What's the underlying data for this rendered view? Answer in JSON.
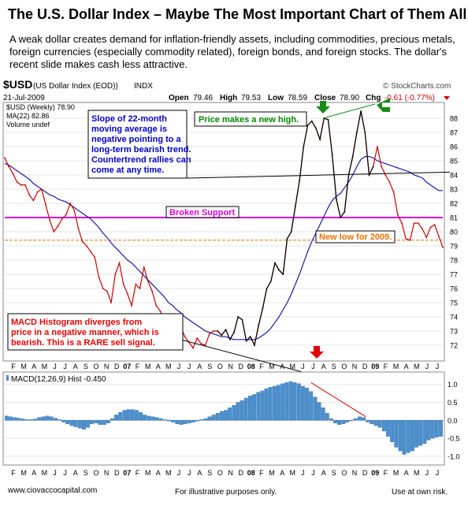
{
  "page": {
    "headline": "The U.S. Dollar Index – Maybe The Most Important Chart of Them All:",
    "intro": "A weak dollar creates demand for inflation-friendly assets, including commodities, precious metals, foreign currencies (especially commodity related), foreign bonds, and foreign stocks.  The dollar's recent slide makes cash less attractive."
  },
  "header": {
    "symbol": "$USD",
    "name": "(US Dollar Index (EOD))",
    "exchange": "INDX",
    "brand": "© StockCharts.com",
    "date": "21-Jul-2009",
    "open_label": "Open",
    "open": "79.46",
    "high_label": "High",
    "high": "79.53",
    "low_label": "Low",
    "low": "78.59",
    "close_label": "Close",
    "close": "78.90",
    "chg_label": "Chg",
    "chg": "-0.61 (-0.77%)"
  },
  "legend": {
    "price": "$USD (Weekly) 78.90",
    "ma": "MA(22) 82.86",
    "volume": "Volume undef"
  },
  "annotations": {
    "slope": [
      "Slope of 22-month",
      "moving average is",
      "negative pointing to a",
      "long-term bearish trend.",
      "Countertrend rallies can",
      "come at any time."
    ],
    "new_high": "Price makes a new high.",
    "broken_support": "Broken Support",
    "new_low": "New low for 2009.",
    "macd_note": [
      "MACD Histogram diverges from",
      "price in a negative manner, which is",
      "bearish. This is a RARE sell signal."
    ]
  },
  "macd_panel": {
    "label": "MACD(12,26,9) Hist -0.450"
  },
  "footer": {
    "left": "www.ciovaccocapital.com",
    "center": "For illustrative purposes only.",
    "right": "Use at own risk."
  },
  "colors": {
    "price": "#cc0000",
    "ma": "#1a1aa6",
    "macd_price": "#000000",
    "support": "#dd00dd",
    "new_low": "#f07000",
    "hist": "#4a90d0",
    "arrow_green": "#1a8a1a",
    "arrow_red": "#e00000",
    "annotation_blue": "#0000cc",
    "annotation_red": "#ee0000",
    "annotation_green": "#008800"
  },
  "chart_data": [
    {
      "type": "line",
      "title": "$USD (US Dollar Index (EOD)) INDX",
      "x_ticks": [
        "F",
        "M",
        "A",
        "M",
        "J",
        "J",
        "A",
        "S",
        "O",
        "N",
        "D",
        "07",
        "F",
        "M",
        "A",
        "M",
        "J",
        "J",
        "A",
        "S",
        "O",
        "N",
        "D",
        "08",
        "F",
        "M",
        "A",
        "M",
        "J",
        "J",
        "A",
        "S",
        "O",
        "N",
        "D",
        "09",
        "F",
        "M",
        "A",
        "M",
        "J",
        "J"
      ],
      "y_ticks": [
        72,
        73,
        74,
        75,
        76,
        77,
        78,
        79,
        80,
        81,
        82,
        83,
        84,
        85,
        86,
        87,
        88
      ],
      "ylim": [
        71,
        89
      ],
      "horizontal_lines": [
        {
          "name": "Broken Support",
          "value": 81.0
        },
        {
          "name": "New low for 2009.",
          "value": 79.4
        }
      ],
      "trendlines": [
        {
          "from": [
            11.6,
            83.5
          ],
          "to": [
            41.5,
            84.2
          ]
        },
        {
          "from": [
            30.0,
            88.0
          ],
          "to": [
            35.2,
            89.0
          ]
        }
      ],
      "series": [
        {
          "name": "$USD (Weekly) 78.90",
          "values": [
            85.2,
            84.6,
            84.1,
            83.5,
            83.3,
            83.3,
            82.6,
            82.2,
            82.8,
            83.0,
            81.9,
            80.8,
            80.0,
            80.4,
            80.9,
            81.2,
            82.0,
            81.5,
            80.2,
            79.3,
            79.0,
            78.6,
            78.2,
            76.8,
            76.0,
            75.8,
            75.0,
            77.0,
            77.8,
            76.3,
            75.6,
            74.8,
            76.3,
            76.0,
            77.5,
            76.5,
            75.8,
            74.8,
            74.4,
            73.7,
            73.9,
            73.1,
            72.8,
            73.3,
            72.6,
            72.2,
            71.8,
            72.5,
            72.1,
            72.0,
            72.8,
            73.0,
            73.0,
            72.7,
            73.1,
            72.4,
            72.9,
            74.0,
            73.8,
            72.3,
            72.6,
            72.0,
            73.4,
            74.6,
            76.0,
            76.5,
            77.8,
            77.3,
            77.0,
            79.5,
            80.0,
            81.8,
            83.6,
            86.0,
            87.5,
            87.8,
            87.3,
            86.5,
            88.0,
            87.9,
            85.4,
            82.3,
            81.0,
            81.4,
            84.0,
            85.3,
            87.0,
            88.5,
            87.0,
            84.0,
            84.6,
            86.0,
            84.6,
            84.0,
            83.5,
            82.8,
            81.2,
            80.6,
            79.5,
            79.4,
            80.6,
            80.6,
            80.2,
            79.6,
            80.3,
            80.5,
            79.7,
            78.9
          ]
        },
        {
          "name": "MA(22) 82.86",
          "values": [
            84.8,
            84.7,
            84.5,
            84.3,
            84.1,
            83.9,
            83.7,
            83.4,
            83.2,
            83.0,
            82.8,
            82.6,
            82.5,
            82.3,
            82.2,
            82.1,
            81.9,
            81.7,
            81.5,
            81.3,
            81.1,
            80.9,
            80.6,
            80.3,
            79.9,
            79.6,
            79.2,
            78.9,
            78.6,
            78.3,
            78.0,
            77.8,
            77.5,
            77.2,
            76.9,
            76.6,
            76.3,
            76.0,
            75.7,
            75.4,
            75.0,
            74.8,
            74.5,
            74.3,
            74.0,
            73.8,
            73.6,
            73.4,
            73.2,
            73.0,
            72.9,
            72.8,
            72.7,
            72.6,
            72.6,
            72.5,
            72.4,
            72.4,
            72.4,
            72.4,
            72.4,
            72.4,
            72.5,
            72.7,
            72.9,
            73.2,
            73.6,
            74.0,
            74.5,
            75.0,
            75.6,
            76.3,
            77.0,
            77.8,
            78.6,
            79.3,
            79.9,
            80.5,
            81.1,
            81.7,
            82.2,
            82.5,
            82.7,
            83.1,
            83.5,
            84.0,
            84.6,
            85.1,
            85.3,
            85.3,
            85.2,
            85.0,
            84.9,
            84.8,
            84.7,
            84.6,
            84.5,
            84.4,
            84.3,
            84.2,
            84.0,
            83.9,
            83.8,
            83.5,
            83.3,
            83.1,
            82.9,
            82.9
          ]
        }
      ]
    },
    {
      "type": "bar",
      "title": "MACD(12,26,9) Hist -0.450",
      "y_ticks": [
        -1.0,
        -0.5,
        0.0,
        0.5,
        1.0
      ],
      "ylim": [
        -1.2,
        1.3
      ],
      "trendlines": [
        {
          "from": [
            75.5,
            1.05
          ],
          "to": [
            89.0,
            0.1
          ]
        }
      ],
      "series": [
        {
          "name": "MACD(12,26,9) Hist -0.450",
          "values": [
            0.12,
            0.1,
            0.08,
            0.06,
            0.04,
            0.02,
            0.02,
            0.04,
            0.08,
            0.1,
            0.12,
            0.1,
            0.06,
            0.02,
            -0.05,
            -0.1,
            -0.15,
            -0.18,
            -0.22,
            -0.25,
            -0.2,
            -0.1,
            -0.08,
            -0.12,
            -0.12,
            -0.08,
            0.05,
            0.15,
            0.22,
            0.28,
            0.3,
            0.3,
            0.28,
            0.22,
            0.15,
            0.12,
            0.1,
            0.08,
            0.05,
            0.02,
            -0.02,
            -0.05,
            -0.1,
            -0.12,
            -0.1,
            -0.08,
            -0.05,
            -0.02,
            0.02,
            0.05,
            0.1,
            0.15,
            0.2,
            0.25,
            0.28,
            0.35,
            0.42,
            0.5,
            0.55,
            0.62,
            0.68,
            0.72,
            0.78,
            0.82,
            0.88,
            0.92,
            0.95,
            0.98,
            1.02,
            1.05,
            1.08,
            1.05,
            1.02,
            0.95,
            0.9,
            0.8,
            0.65,
            0.5,
            0.35,
            0.2,
            0.05,
            -0.08,
            -0.12,
            -0.1,
            -0.05,
            0.0,
            0.05,
            0.1,
            0.08,
            -0.05,
            -0.1,
            -0.15,
            -0.2,
            -0.3,
            -0.45,
            -0.6,
            -0.75,
            -0.85,
            -0.95,
            -0.9,
            -0.85,
            -0.75,
            -0.7,
            -0.65,
            -0.55,
            -0.5,
            -0.47,
            -0.45
          ]
        }
      ]
    }
  ]
}
